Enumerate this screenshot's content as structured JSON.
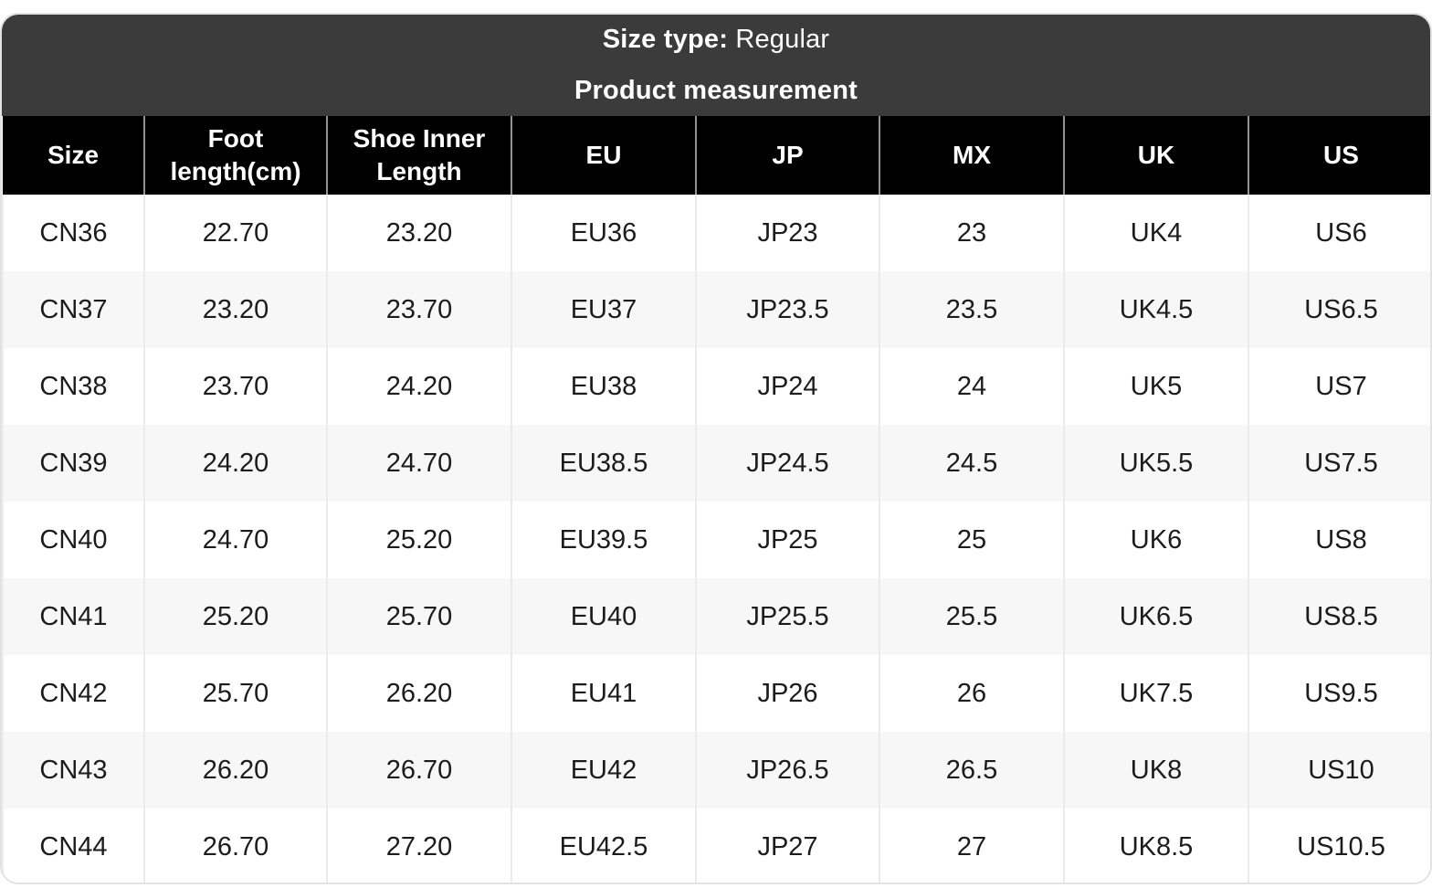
{
  "header": {
    "size_type_label": "Size type:",
    "size_type_value": "Regular",
    "subtitle": "Product measurement"
  },
  "table": {
    "columns": [
      "Size",
      "Foot length(cm)",
      "Shoe Inner Length",
      "EU",
      "JP",
      "MX",
      "UK",
      "US"
    ],
    "rows": [
      [
        "CN36",
        "22.70",
        "23.20",
        "EU36",
        "JP23",
        "23",
        "UK4",
        "US6"
      ],
      [
        "CN37",
        "23.20",
        "23.70",
        "EU37",
        "JP23.5",
        "23.5",
        "UK4.5",
        "US6.5"
      ],
      [
        "CN38",
        "23.70",
        "24.20",
        "EU38",
        "JP24",
        "24",
        "UK5",
        "US7"
      ],
      [
        "CN39",
        "24.20",
        "24.70",
        "EU38.5",
        "JP24.5",
        "24.5",
        "UK5.5",
        "US7.5"
      ],
      [
        "CN40",
        "24.70",
        "25.20",
        "EU39.5",
        "JP25",
        "25",
        "UK6",
        "US8"
      ],
      [
        "CN41",
        "25.20",
        "25.70",
        "EU40",
        "JP25.5",
        "25.5",
        "UK6.5",
        "US8.5"
      ],
      [
        "CN42",
        "25.70",
        "26.20",
        "EU41",
        "JP26",
        "26",
        "UK7.5",
        "US9.5"
      ],
      [
        "CN43",
        "26.20",
        "26.70",
        "EU42",
        "JP26.5",
        "26.5",
        "UK8",
        "US10"
      ],
      [
        "CN44",
        "26.70",
        "27.20",
        "EU42.5",
        "JP27",
        "27",
        "UK8.5",
        "US10.5"
      ]
    ]
  },
  "colors": {
    "header_bg": "#3b3b3b",
    "column_header_bg": "#000000",
    "alt_row_bg": "#f7f7f7",
    "body_text": "#1c1c1c"
  }
}
